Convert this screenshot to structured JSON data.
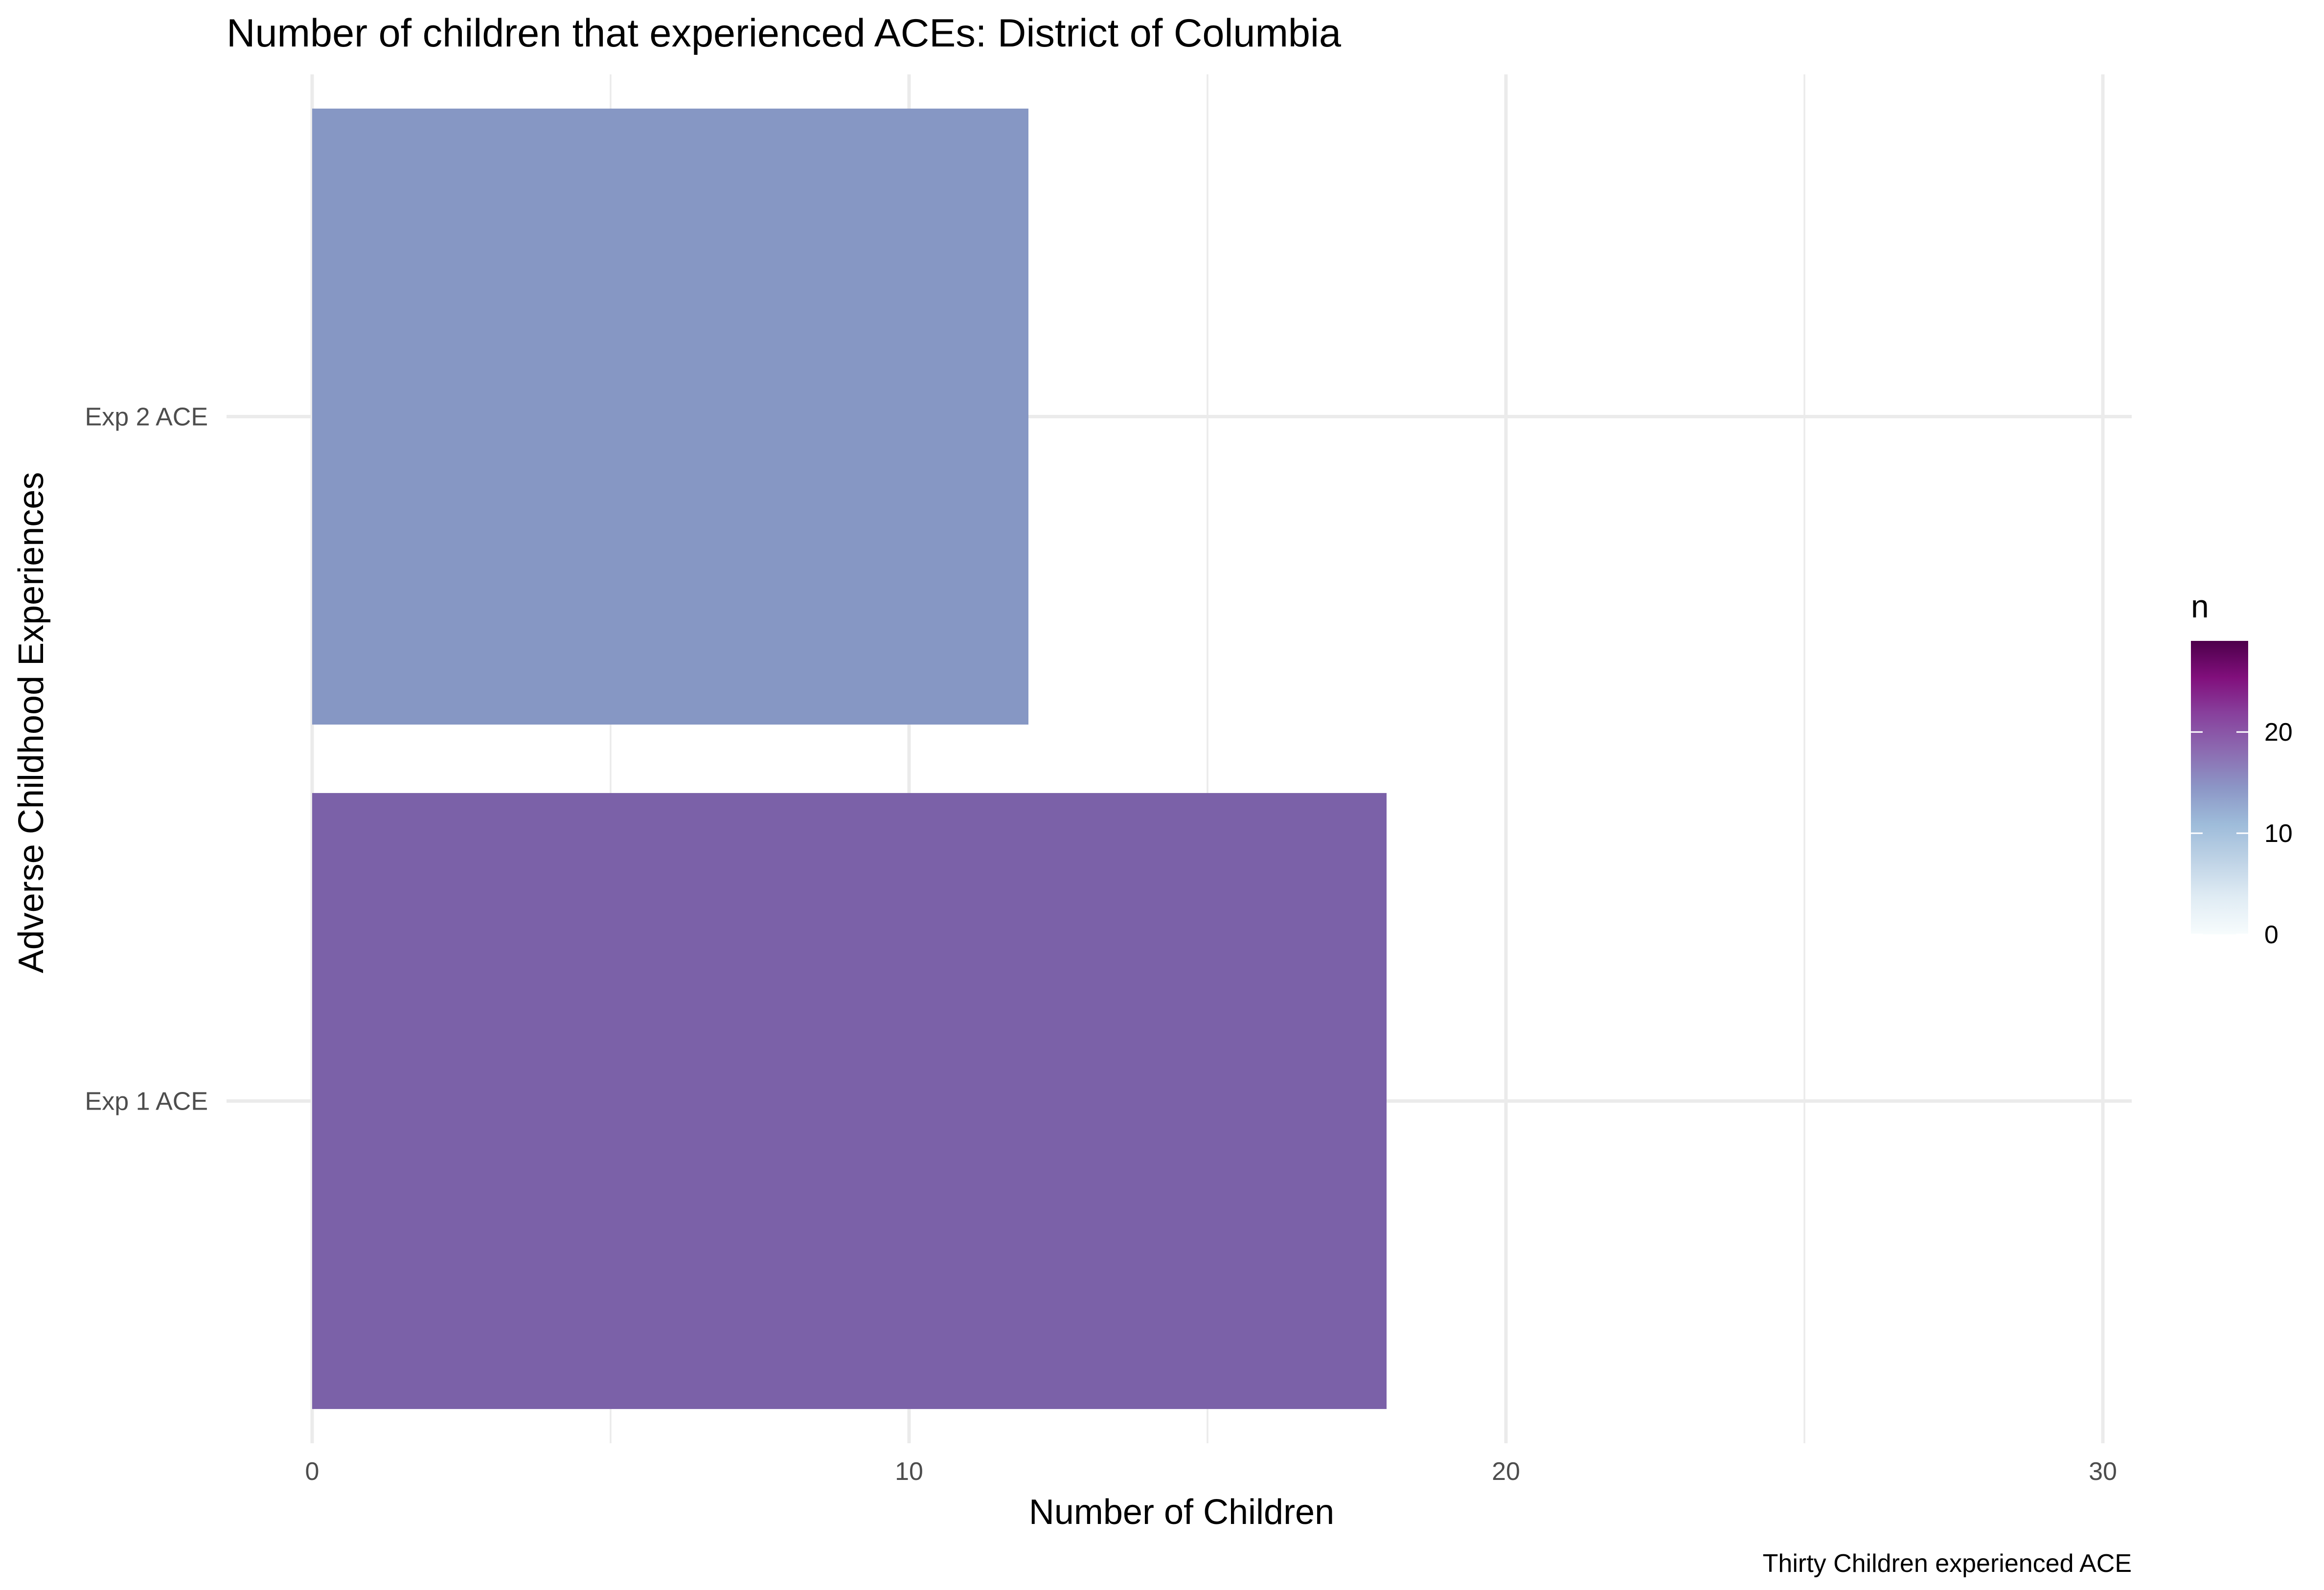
{
  "chart_data": {
    "type": "bar",
    "orientation": "horizontal",
    "title": "Number of children that experienced ACEs: District of Columbia",
    "xlabel": "Number of Children",
    "ylabel": "Adverse Childhood Experiences",
    "caption": "Thirty Children experienced ACE",
    "categories": [
      "Exp 1 ACE",
      "Exp 2 ACE"
    ],
    "values": [
      18,
      12
    ],
    "bar_colors": [
      "#7b61a8",
      "#8697c4"
    ],
    "xlim": [
      0,
      30.5
    ],
    "x_ticks": [
      0,
      10,
      20,
      30
    ],
    "x_tick_labels": [
      "0",
      "10",
      "20",
      "30"
    ],
    "grid": true,
    "legend": {
      "title": "n",
      "placement": "right",
      "type": "colorbar",
      "min": 0,
      "max": 29,
      "breaks": [
        0,
        10,
        20
      ],
      "break_labels": [
        "0",
        "10",
        "20"
      ],
      "colors": [
        "#f7fcfd",
        "#e0ecf4",
        "#bfd3e6",
        "#9ebcda",
        "#8c96c6",
        "#8c6bb1",
        "#88419d",
        "#810f7c",
        "#4d004b"
      ]
    }
  }
}
